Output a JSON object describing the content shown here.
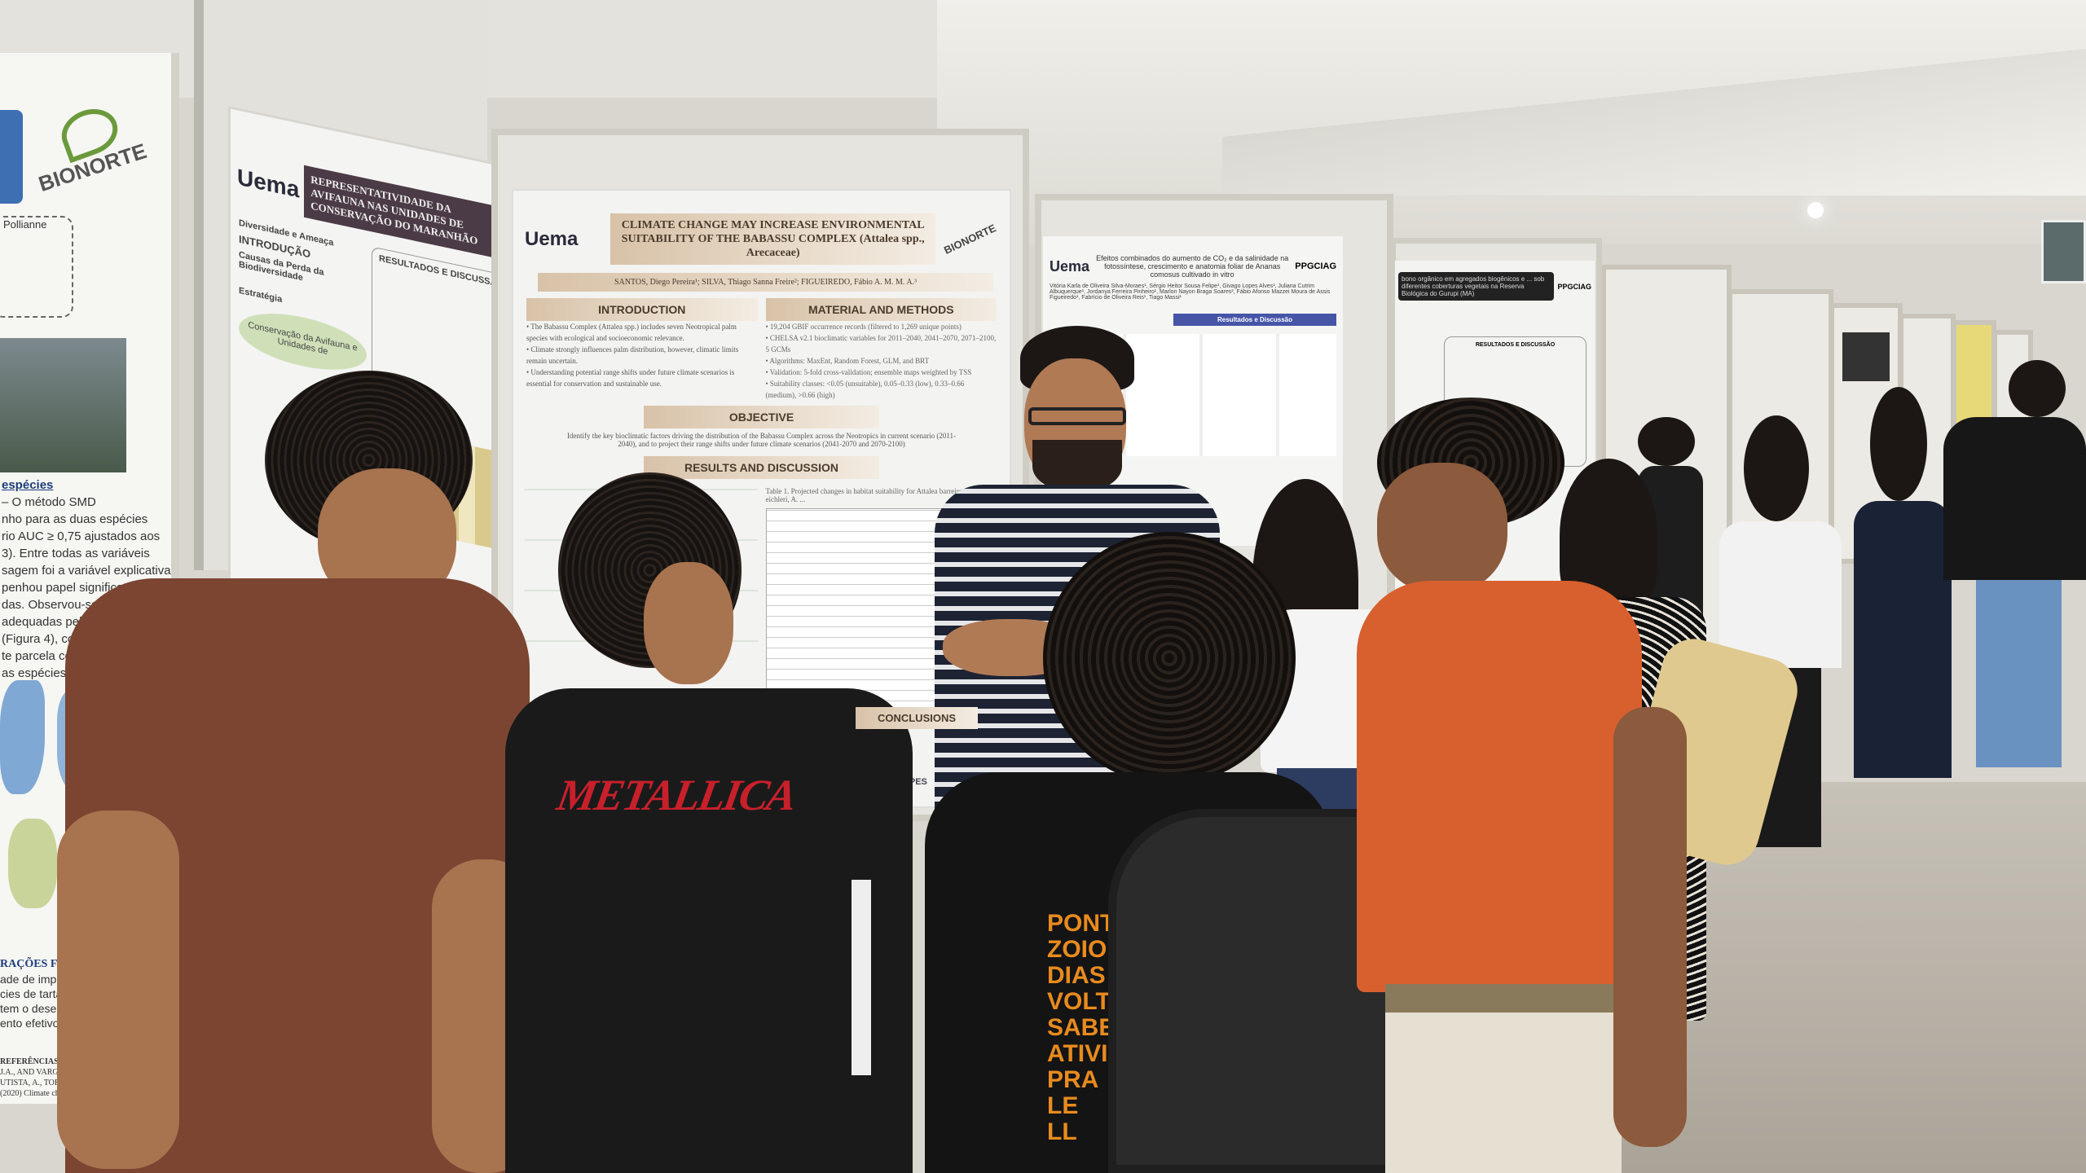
{
  "scene": {
    "description_colors": {
      "ceiling": "#e6e4de",
      "wall": "#dedbd3",
      "floor": "#b9b4aa",
      "accent_orange": "#d8602e",
      "shirt_brown": "#7b4532"
    }
  },
  "poster_left": {
    "logo": "BIONORTE",
    "author_fragment": "Pollianne",
    "results_heading": "espécies",
    "results_text": [
      "– O método SMD",
      "nho para as duas espécies",
      "rio AUC ≥ 0,75 ajustados aos",
      "3). Entre todas as variáveis",
      "sagem foi a variável explicativa",
      "penhou papel significativo na",
      "das. Observou-se que grande",
      "adequadas pelo modelo, se",
      "(Figura 4), comprovando que as",
      "te parcela considerável para a",
      "as espécies de quelônios."
    ],
    "conclusions_heading": "RAÇÕES F",
    "conclusions_text": [
      "ade de imple",
      "cies de tartar",
      "tem o desen",
      "ento efetivo d"
    ],
    "references_heading": "REFERÊNCIAS",
    "references_text": [
      "J.A., AND VARGAS-S",
      "UTISTA, A., TORRES ÁNG",
      "(2020) Climate change effects"
    ]
  },
  "poster_avifauna": {
    "logo": "Uema",
    "title": "REPRESENTATIVIDADE DA AVIFAUNA NAS UNIDADES DE CONSERVAÇÃO DO MARANHÃO",
    "section_intro": "INTRODUÇÃO",
    "label_diversity": "Diversidade e Ameaça",
    "label_causes": "Causas da Perda da Biodiversidade",
    "label_strategy": "Estratégia",
    "label_conservation": "Conservação da Avifauna e Unidades de",
    "section_results": "RESULTADOS E DISCUSSÃO"
  },
  "poster_babassu": {
    "logo": "Uema",
    "logo_right": "BIONORTE",
    "title_line1": "CLIMATE CHANGE MAY INCREASE ENVIRONMENTAL",
    "title_line2": "SUITABILITY OF THE BABASSU COMPLEX (Attalea spp.,",
    "title_line3": "Arecaceae)",
    "authors": "SANTOS, Diego Pereira¹; SILVA, Thiago Sanna Freire²; FIGUEIREDO, Fábio A. M. M. A.³",
    "section_intro": "INTRODUCTION",
    "intro_bullets": [
      "• The Babassu Complex (Attalea spp.) includes seven Neotropical palm species with ecological and socioeconomic relevance.",
      "• Climate strongly influences palm distribution, however, climatic limits remain uncertain.",
      "• Understanding potential range shifts under future climate scenarios is essential for conservation and sustainable use."
    ],
    "section_methods": "MATERIAL AND METHODS",
    "methods_bullets": [
      "• 19,204 GBIF occurrence records (filtered to 1,269 unique points)",
      "• CHELSA v2.1 bioclimatic variables for 2011–2040, 2041–2070, 2071–2100, 5 GCMs",
      "• Algorithms: MaxEnt, Random Forest, GLM, and BRT",
      "• Validation: 5-fold cross-validation; ensemble maps weighted by TSS",
      "• Suitability classes: <0.05 (unsuitable), 0.05–0.33 (low), 0.33–0.66 (medium), >0.66 (high)"
    ],
    "section_objective": "OBJECTIVE",
    "objective_text": "Identify the key bioclimatic factors driving the distribution of the Babassu Complex across the Neotropics in current scenario (2011-2040), and to project their range shifts under future climate scenarios (2041-2070 and 2070-2100)",
    "section_results": "RESULTS AND DISCUSSION",
    "table_caption": "Table 1. Projected changes in habitat suitability for Attalea barreirensis, A. eichleri, A. ...",
    "section_conclusions": "CONCLUSIONS",
    "funder": "CAPES"
  },
  "poster_ananas": {
    "logo": "Uema",
    "logo_right": "PPGCIAG",
    "title": "Efeitos combinados do aumento de CO₂ e da salinidade na fotossíntese, crescimento e anatomia foliar de Ananas comosus cultivado in vitro",
    "authors": "Vitória Karla de Oliveira Silva-Moraes¹, Sérgio Heitor Sousa Felipe¹, Givago Lopes Alves¹, Juliana Cutrim Albuquerque¹, Jordanya Ferreira Pinheiro¹, Marlon Nayon Braga Soares², Fábio Afonso Mazzei Moura de Assis Figueiredo¹, Fabrício de Oliveira Reis¹, Tiago Massi¹",
    "section_results": "Resultados e Discussão"
  },
  "poster_carbono": {
    "logo_right": "PPGCIAG",
    "title": "bono orgânico em agregados biogênicos e ... sob diferentes coberturas vegetais na Reserva Biológica do Gurupi (MA)",
    "section_results": "RESULTADOS E DISCUSSÃO"
  },
  "shirt_print": {
    "metallica": "METALLICA",
    "back_print": [
      "PONTE",
      "ZOIO DE",
      "DIAS DE",
      "VOLTA",
      "SABENS",
      "ATIVI",
      "PRA",
      "LE",
      "LL"
    ]
  }
}
